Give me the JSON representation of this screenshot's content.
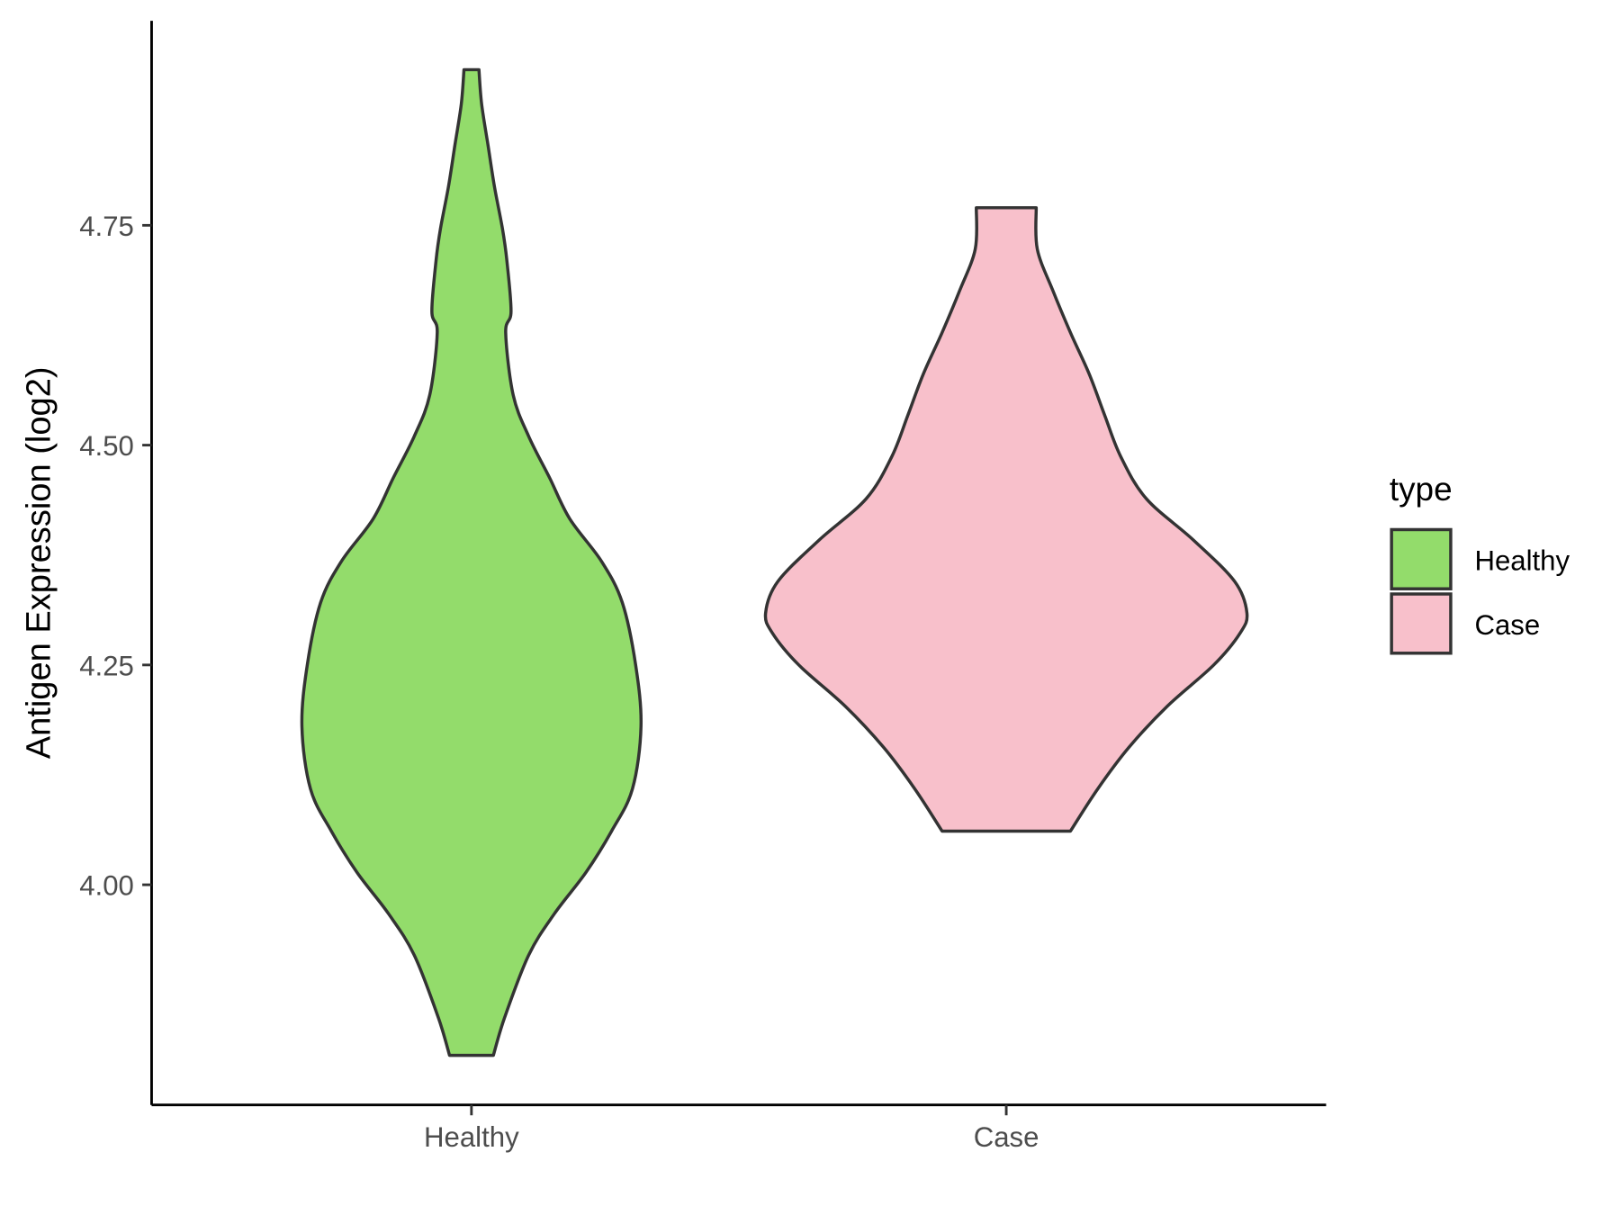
{
  "chart_data": {
    "type": "violin",
    "title": "",
    "xlabel": "",
    "ylabel": "Antigen Expression (log2)",
    "ylim": [
      3.76,
      4.99
    ],
    "yticks": [
      4.0,
      4.25,
      4.5,
      4.75
    ],
    "ytick_labels": [
      "4.00",
      "4.25",
      "4.50",
      "4.75"
    ],
    "categories": [
      "Healthy",
      "Case"
    ],
    "grid": false,
    "legend": {
      "title": "type",
      "position": "right",
      "entries": [
        "Healthy",
        "Case"
      ]
    },
    "series": [
      {
        "name": "Healthy",
        "color": "#93DC6B",
        "min": 3.806,
        "max": 4.927,
        "density_profile": {
          "y": [
            3.806,
            3.849,
            3.92,
            3.967,
            4.014,
            4.061,
            4.109,
            4.18,
            4.25,
            4.321,
            4.368,
            4.416,
            4.463,
            4.51,
            4.557,
            4.628,
            4.652,
            4.711,
            4.746,
            4.794,
            4.841,
            4.888,
            4.927
          ],
          "half_width": [
            0.041,
            0.062,
            0.107,
            0.155,
            0.214,
            0.262,
            0.301,
            0.317,
            0.307,
            0.282,
            0.243,
            0.184,
            0.146,
            0.107,
            0.078,
            0.064,
            0.074,
            0.066,
            0.058,
            0.043,
            0.031,
            0.019,
            0.014
          ]
        }
      },
      {
        "name": "Case",
        "color": "#F8C0CB",
        "min": 4.061,
        "max": 4.77,
        "density_profile": {
          "y": [
            4.061,
            4.109,
            4.156,
            4.203,
            4.25,
            4.286,
            4.309,
            4.345,
            4.392,
            4.439,
            4.487,
            4.534,
            4.581,
            4.628,
            4.676,
            4.723,
            4.77
          ],
          "half_width": [
            0.12,
            0.171,
            0.229,
            0.301,
            0.388,
            0.437,
            0.45,
            0.427,
            0.35,
            0.262,
            0.214,
            0.184,
            0.155,
            0.12,
            0.087,
            0.058,
            0.056
          ]
        }
      }
    ],
    "outline_color": "#333333"
  }
}
